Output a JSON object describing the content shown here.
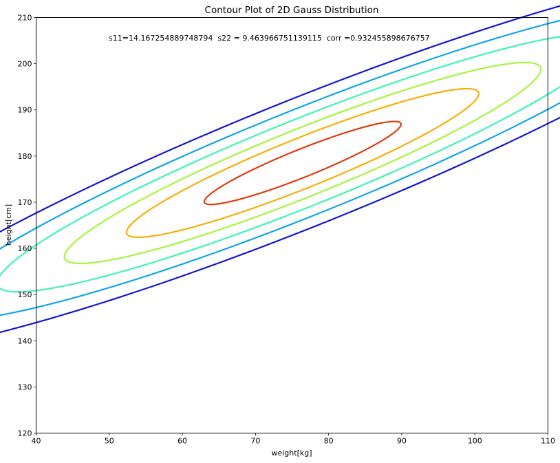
{
  "chart_data": {
    "type": "contour",
    "title": "Contour Plot of 2D Gauss Distribution",
    "annotation": "s11=14.167254889748794  s22 = 9.463966751139115  corr =0.932455898676757",
    "xlabel": "weight[kg]",
    "ylabel": "height[cm]",
    "xlim": [
      40,
      110
    ],
    "ylim": [
      120,
      210
    ],
    "xticks": [
      40,
      50,
      60,
      70,
      80,
      90,
      100,
      110
    ],
    "yticks": [
      120,
      130,
      140,
      150,
      160,
      170,
      180,
      190,
      200,
      210
    ],
    "grid": false,
    "legend": false,
    "mean": [
      76.45,
      178.5
    ],
    "s11": 14.167254889748794,
    "s22": 9.463966751139115,
    "corr": 0.932455898676757,
    "contour_mahalanobis_levels": [
      4.32,
      3.6,
      2.95,
      2.3,
      1.7,
      0.95
    ],
    "contour_colors": [
      "#1414d8",
      "#0fa5ec",
      "#3cf5b4",
      "#a5f53c",
      "#f7ae06",
      "#e4380f"
    ]
  }
}
